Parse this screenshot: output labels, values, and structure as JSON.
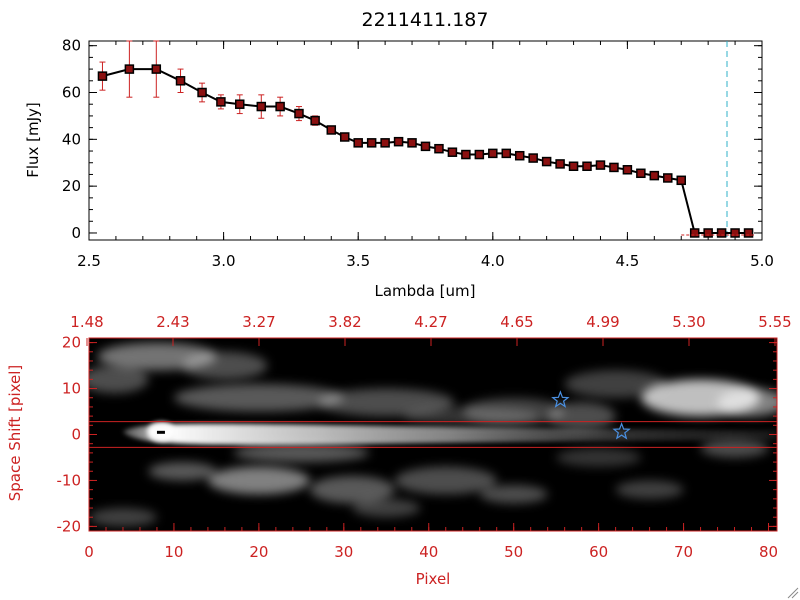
{
  "chart_data": [
    {
      "type": "line",
      "title": "2211411.187",
      "xlabel": "Lambda [um]",
      "ylabel": "Flux [mJy]",
      "xlim": [
        2.5,
        5.0
      ],
      "ylim": [
        0,
        80
      ],
      "x_ticks": [
        "2.5",
        "3.0",
        "3.5",
        "4.0",
        "4.5",
        "5.0"
      ],
      "y_ticks": [
        "0",
        "20",
        "40",
        "60",
        "80"
      ],
      "vline_x": 4.87,
      "series": [
        {
          "x": [
            2.55,
            2.65,
            2.75,
            2.84,
            2.92,
            2.99,
            3.06,
            3.14,
            3.21,
            3.28,
            3.34,
            3.4,
            3.45,
            3.5,
            3.55,
            3.6,
            3.65,
            3.7,
            3.75,
            3.8,
            3.85,
            3.9,
            3.95,
            4.0,
            4.05,
            4.1,
            4.15,
            4.2,
            4.25,
            4.3,
            4.35,
            4.4,
            4.45,
            4.5,
            4.55,
            4.6,
            4.65,
            4.7,
            4.75,
            4.8,
            4.85,
            4.9,
            4.95
          ],
          "values": [
            67,
            70,
            70,
            65,
            60,
            56,
            55,
            54,
            54,
            51,
            48,
            44,
            41,
            38.5,
            38.5,
            38.5,
            39,
            38.5,
            37,
            36,
            34.5,
            33.5,
            33.5,
            34,
            34,
            33,
            32,
            30.5,
            29.5,
            28.5,
            28.5,
            29,
            28,
            27,
            25.5,
            24.5,
            23.5,
            22.5,
            0,
            0,
            0,
            0,
            0
          ],
          "errors": [
            6,
            12,
            12,
            5,
            4,
            3,
            4,
            5,
            4,
            3,
            2,
            1,
            1,
            1,
            1,
            1,
            1,
            1,
            1,
            1,
            1,
            1,
            1,
            1,
            1,
            1,
            1,
            1,
            1,
            1,
            1,
            1,
            1,
            1,
            1,
            1,
            1,
            1,
            0.5,
            0.5,
            0.5,
            0.5,
            0.5
          ]
        }
      ]
    },
    {
      "type": "heatmap",
      "xlabel": "Pixel",
      "ylabel": "Space Shift [pixel]",
      "xlim": [
        0,
        81
      ],
      "ylim": [
        -21,
        21
      ],
      "x_ticks": [
        "0",
        "10",
        "20",
        "30",
        "40",
        "50",
        "60",
        "70",
        "80"
      ],
      "y_ticks": [
        "-20",
        "-10",
        "0",
        "10",
        "20"
      ],
      "top_ticks": [
        "1.48",
        "2.43",
        "3.27",
        "3.82",
        "4.27",
        "4.65",
        "4.99",
        "5.30",
        "5.55"
      ],
      "hlines": [
        2.8,
        -2.8
      ],
      "stars": [
        {
          "x": 55.5,
          "y": 7.5
        },
        {
          "x": 62.7,
          "y": 0.6
        }
      ],
      "colors": {
        "axis_color": "#cc2222",
        "star_color": "#4a90e2",
        "error_bar_color": "#cc2222",
        "marker_color": "#8b1010",
        "vline_color": "#30b0c8"
      }
    }
  ]
}
